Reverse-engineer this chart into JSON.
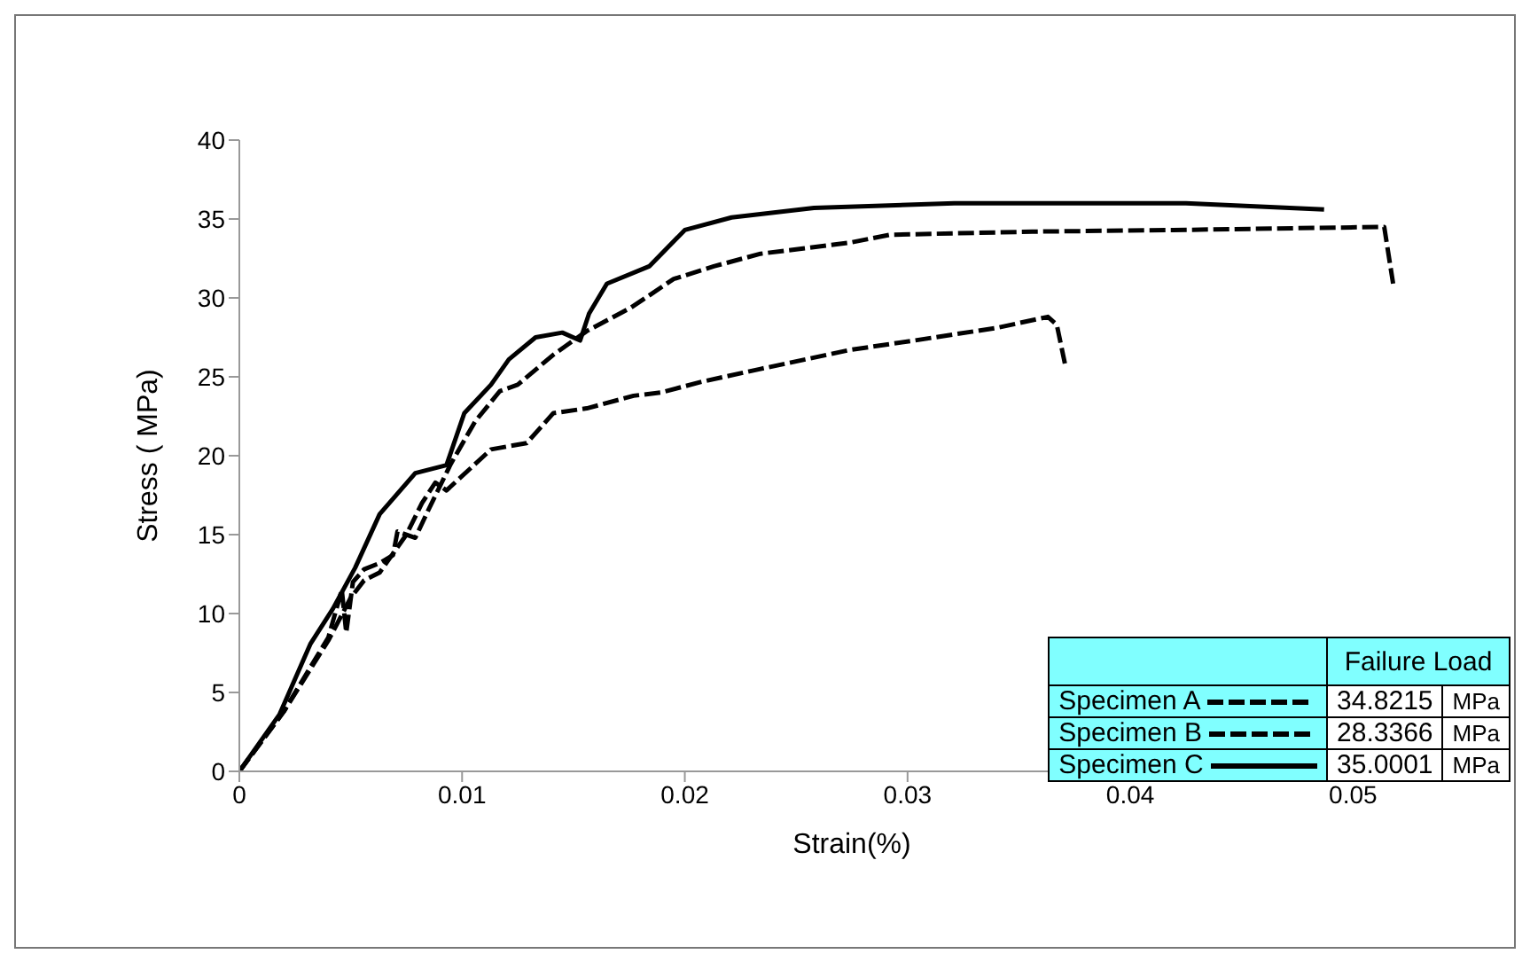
{
  "chart_data": {
    "type": "line",
    "xlabel": "Strain(%)",
    "ylabel": "Stress ( MPa)",
    "xlim": [
      0,
      0.055
    ],
    "xticks": [
      0,
      0.01,
      0.02,
      0.03,
      0.04,
      0.05
    ],
    "ylim": [
      0,
      40
    ],
    "yticks": [
      0,
      5,
      10,
      15,
      20,
      25,
      30,
      35,
      40
    ],
    "grid": false,
    "legend": "bottom right",
    "marker": "none",
    "legend_title": "Failure Load",
    "annotations": [
      "34.8215",
      "MPa",
      "28.3366",
      "MPa",
      "35.0001",
      "MPa"
    ],
    "series": [
      {
        "name": "Specimen A",
        "color": "#000000",
        "line_style": "dashed",
        "x": [
          0,
          0.002,
          0.004,
          0.0046,
          0.0048,
          0.0051,
          0.0056,
          0.0063,
          0.0069,
          0.0071,
          0.0079,
          0.0085,
          0.0095,
          0.0106,
          0.0117,
          0.0125,
          0.0141,
          0.0156,
          0.0176,
          0.0195,
          0.0213,
          0.0234,
          0.0274,
          0.0292,
          0.0356,
          0.0419,
          0.0514,
          0.0518
        ],
        "values": [
          0,
          3.8,
          8.5,
          11.5,
          8.8,
          12,
          12.8,
          13.2,
          13.7,
          15.2,
          14.8,
          16.6,
          19.5,
          22.2,
          24.1,
          24.5,
          26.4,
          27.9,
          29.4,
          31.2,
          32,
          32.8,
          33.5,
          34,
          34.2,
          34.3,
          34.5,
          30.9
        ]
      },
      {
        "name": "Specimen B",
        "color": "#000000",
        "line_style": "dashed",
        "x": [
          0,
          0.002,
          0.004,
          0.005,
          0.0056,
          0.0063,
          0.007,
          0.0075,
          0.0082,
          0.0088,
          0.0093,
          0.0113,
          0.0129,
          0.0141,
          0.0156,
          0.0177,
          0.0189,
          0.0208,
          0.0234,
          0.0274,
          0.0303,
          0.034,
          0.0363,
          0.0367,
          0.0371
        ],
        "values": [
          0,
          3.8,
          8.3,
          11,
          12.1,
          12.6,
          14,
          15,
          17,
          18.3,
          17.8,
          20.4,
          20.8,
          22.7,
          23,
          23.8,
          24,
          24.7,
          25.5,
          26.7,
          27.3,
          28.1,
          28.8,
          28.3,
          25.6
        ]
      },
      {
        "name": "Specimen C",
        "color": "#000000",
        "line_style": "solid",
        "x": [
          0,
          0.0018,
          0.0032,
          0.0042,
          0.0052,
          0.0063,
          0.0079,
          0.0093,
          0.0101,
          0.0113,
          0.0121,
          0.0133,
          0.0145,
          0.0153,
          0.0157,
          0.0165,
          0.0184,
          0.02,
          0.0221,
          0.0258,
          0.0321,
          0.0425,
          0.0487
        ],
        "values": [
          0,
          3.6,
          8.1,
          10.3,
          12.9,
          16.3,
          18.9,
          19.4,
          22.7,
          24.5,
          26.1,
          27.5,
          27.8,
          27.3,
          29,
          30.9,
          32,
          34.3,
          35.1,
          35.7,
          36,
          36,
          35.6
        ]
      }
    ]
  }
}
